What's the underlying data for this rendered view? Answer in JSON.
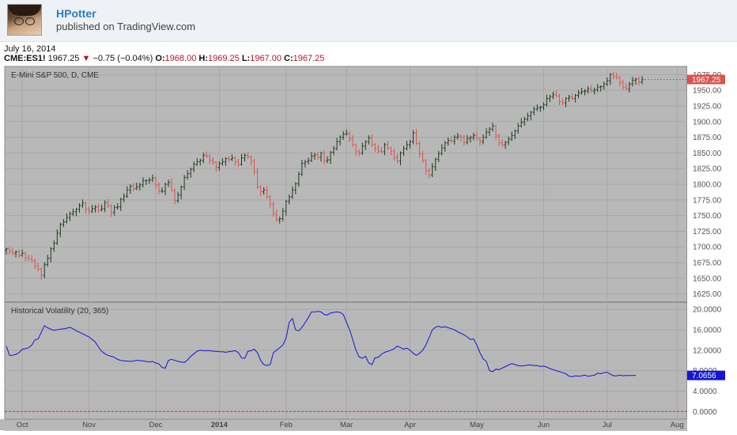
{
  "header": {
    "username": "HPotter",
    "published": "published on TradingView.com",
    "avatar_icon": "user-avatar-icon"
  },
  "quote": {
    "date": "July 16, 2014",
    "symbol": "CME:ES1!",
    "last": "1967.25",
    "change": "−0.75 (−0.04%)",
    "open_label": "O:",
    "open": "1968.00",
    "high_label": "H:",
    "high": "1969.25",
    "low_label": "L:",
    "low": "1967.00",
    "close_label": "C:",
    "close": "1967.25",
    "down_color": "#b0182a"
  },
  "chart_data": [
    {
      "type": "ohlc",
      "title": "E-Mini S&P 500, D, CME",
      "ylim": [
        1617,
        1983
      ],
      "y_ticks": [
        "1975.00",
        "1950.00",
        "1925.00",
        "1900.00",
        "1875.00",
        "1850.00",
        "1825.00",
        "1800.00",
        "1775.00",
        "1750.00",
        "1725.00",
        "1700.00",
        "1675.00",
        "1650.00",
        "1625.00"
      ],
      "x_ticks": [
        "Oct",
        "Nov",
        "Dec",
        "2014",
        "Feb",
        "Mar",
        "Apr",
        "May",
        "Jun",
        "Jul",
        "Aug"
      ],
      "last_price_label": "1967.25",
      "up_color": "#1e3a1e",
      "down_color": "#d9534f",
      "close": [
        1697,
        1693,
        1690,
        1692,
        1687,
        1690,
        1683,
        1681,
        1678,
        1670,
        1665,
        1655,
        1672,
        1682,
        1697,
        1706,
        1722,
        1736,
        1740,
        1747,
        1753,
        1756,
        1760,
        1766,
        1770,
        1760,
        1757,
        1761,
        1764,
        1759,
        1761,
        1771,
        1766,
        1755,
        1763,
        1764,
        1776,
        1781,
        1791,
        1797,
        1793,
        1796,
        1799,
        1806,
        1806,
        1807,
        1810,
        1799,
        1789,
        1789,
        1800,
        1803,
        1790,
        1774,
        1783,
        1796,
        1811,
        1817,
        1824,
        1832,
        1836,
        1838,
        1846,
        1845,
        1838,
        1835,
        1827,
        1833,
        1836,
        1841,
        1840,
        1842,
        1836,
        1832,
        1842,
        1846,
        1844,
        1837,
        1820,
        1796,
        1788,
        1791,
        1780,
        1768,
        1753,
        1743,
        1745,
        1757,
        1773,
        1780,
        1791,
        1801,
        1816,
        1833,
        1836,
        1838,
        1845,
        1847,
        1843,
        1850,
        1837,
        1839,
        1851,
        1857,
        1868,
        1875,
        1880,
        1881,
        1873,
        1863,
        1852,
        1850,
        1861,
        1868,
        1874,
        1863,
        1858,
        1853,
        1852,
        1863,
        1858,
        1853,
        1843,
        1837,
        1850,
        1857,
        1863,
        1868,
        1882,
        1865,
        1848,
        1838,
        1822,
        1815,
        1828,
        1840,
        1849,
        1858,
        1866,
        1870,
        1869,
        1875,
        1877,
        1875,
        1867,
        1873,
        1875,
        1878,
        1873,
        1868,
        1875,
        1883,
        1888,
        1893,
        1877,
        1866,
        1863,
        1867,
        1872,
        1878,
        1885,
        1893,
        1899,
        1904,
        1909,
        1915,
        1920,
        1922,
        1923,
        1927,
        1937,
        1940,
        1943,
        1941,
        1932,
        1930,
        1937,
        1939,
        1937,
        1942,
        1946,
        1948,
        1949,
        1952,
        1949,
        1951,
        1955,
        1956,
        1960,
        1965,
        1975,
        1972,
        1970,
        1962,
        1955,
        1952,
        1960,
        1966,
        1968,
        1963,
        1967
      ]
    },
    {
      "type": "line",
      "title": "Historical Volatility (20, 365)",
      "ylim": [
        -1.2,
        20.8
      ],
      "y_ticks": [
        "20.0000",
        "16.0000",
        "12.0000",
        "8.0000",
        "4.0000",
        "0.0000"
      ],
      "last_value_label": "7.0656",
      "line_color": "#1515d6",
      "values": [
        12.8,
        11.0,
        11.0,
        11.2,
        11.5,
        12.2,
        12.3,
        12.5,
        13.0,
        14.0,
        14.2,
        15.5,
        16.8,
        16.4,
        16.1,
        15.9,
        16.0,
        16.1,
        16.2,
        16.3,
        16.5,
        16.2,
        15.8,
        15.5,
        15.2,
        14.9,
        14.6,
        14.1,
        13.6,
        12.6,
        11.8,
        11.3,
        11.0,
        10.8,
        10.6,
        10.2,
        10.0,
        9.9,
        9.9,
        9.8,
        9.9,
        10.0,
        10.0,
        9.9,
        9.8,
        9.7,
        9.8,
        9.5,
        9.3,
        8.6,
        8.5,
        10.0,
        10.2,
        10.0,
        9.8,
        9.7,
        9.6,
        10.1,
        10.8,
        11.3,
        11.8,
        12.0,
        11.9,
        11.9,
        11.9,
        11.8,
        11.8,
        11.7,
        11.7,
        11.6,
        11.7,
        11.8,
        11.9,
        11.5,
        10.5,
        10.4,
        11.8,
        11.9,
        12.2,
        11.5,
        10.0,
        9.2,
        9.0,
        9.2,
        11.5,
        12.0,
        12.5,
        13.0,
        14.4,
        17.5,
        18.2,
        16.0,
        15.8,
        16.5,
        17.4,
        18.4,
        19.5,
        19.5,
        19.6,
        19.5,
        19.0,
        18.9,
        19.3,
        19.4,
        19.5,
        19.4,
        19.0,
        17.5,
        16.0,
        14.0,
        12.0,
        10.7,
        10.4,
        10.8,
        9.5,
        9.2,
        10.5,
        10.6,
        11.2,
        11.6,
        11.8,
        12.0,
        12.3,
        12.8,
        12.5,
        12.2,
        12.4,
        12.0,
        11.4,
        11.0,
        11.4,
        12.0,
        13.0,
        14.5,
        16.0,
        16.5,
        16.7,
        16.5,
        16.6,
        16.4,
        16.2,
        16.0,
        15.6,
        15.3,
        15.0,
        14.6,
        14.1,
        14.2,
        13.0,
        11.5,
        10.3,
        9.8,
        8.0,
        7.8,
        8.3,
        8.2,
        8.5,
        8.8,
        9.1,
        9.4,
        9.2,
        9.0,
        8.9,
        9.0,
        9.1,
        9.1,
        9.0,
        9.0,
        8.8,
        8.9,
        8.7,
        8.4,
        8.2,
        8.0,
        7.8,
        7.6,
        7.4,
        6.9,
        6.8,
        7.0,
        6.9,
        7.0,
        7.1,
        6.9,
        7.0,
        7.1,
        7.5,
        7.4,
        7.6,
        7.7,
        7.3,
        7.0,
        7.0,
        7.1,
        7.0,
        7.05,
        7.06,
        7.06,
        7.07
      ]
    }
  ]
}
